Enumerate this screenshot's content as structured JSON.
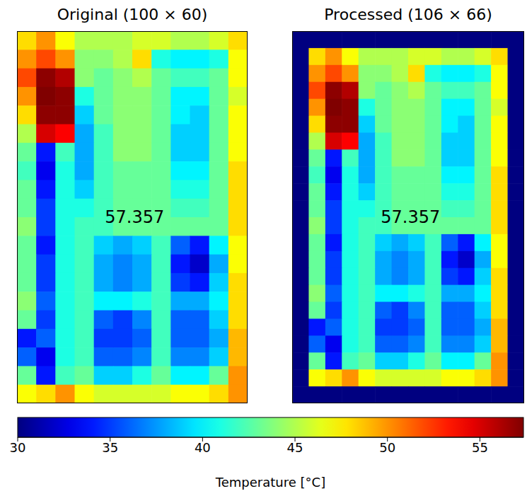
{
  "chart_data": [
    {
      "type": "heatmap",
      "title": "Original (100 × 60)",
      "annotation": "57.357",
      "tick_labels": false,
      "cells": [
        [
          48,
          50,
          47,
          45,
          45,
          45,
          46,
          46,
          45,
          45,
          46,
          48
        ],
        [
          50,
          52,
          50,
          44,
          44,
          45,
          48,
          41,
          40,
          40,
          41,
          47
        ],
        [
          52,
          57,
          56,
          44,
          43,
          44,
          45,
          43,
          42,
          42,
          43,
          47
        ],
        [
          50,
          57.357,
          57,
          41,
          43,
          44,
          44,
          43,
          40,
          40,
          43,
          46
        ],
        [
          48,
          57,
          57,
          39,
          43,
          44,
          44,
          43,
          40,
          39,
          43,
          47
        ],
        [
          45,
          55,
          54,
          38,
          42,
          44,
          44,
          43,
          39,
          39,
          43,
          47
        ],
        [
          43,
          34,
          42,
          38,
          42,
          44,
          44,
          43,
          39,
          39,
          43,
          47
        ],
        [
          42,
          33,
          41,
          38,
          42,
          43,
          43,
          43,
          40,
          40,
          43,
          48
        ],
        [
          43,
          34,
          41,
          39,
          42,
          43,
          43,
          43,
          41,
          41,
          43,
          48
        ],
        [
          43,
          35,
          41,
          41,
          42,
          43,
          43,
          43,
          42,
          42,
          43,
          48
        ],
        [
          44,
          35,
          41,
          42,
          42,
          43,
          43,
          43,
          43,
          43,
          43,
          48
        ],
        [
          43,
          34,
          41,
          42,
          39,
          38,
          39,
          42,
          36,
          34,
          40,
          47
        ],
        [
          43,
          35,
          41,
          42,
          38,
          37,
          38,
          42,
          34,
          32,
          38,
          47
        ],
        [
          43,
          35,
          41,
          42,
          38,
          37,
          38,
          42,
          35,
          34,
          39,
          48
        ],
        [
          44,
          36,
          41,
          42,
          40,
          40,
          41,
          42,
          38,
          38,
          40,
          48
        ],
        [
          43,
          35,
          41,
          42,
          36,
          35,
          37,
          42,
          36,
          36,
          39,
          48
        ],
        [
          34,
          36,
          41,
          42,
          35,
          35,
          36,
          42,
          36,
          36,
          38,
          49
        ],
        [
          36,
          33,
          41,
          42,
          36,
          36,
          37,
          42,
          37,
          37,
          39,
          49
        ],
        [
          43,
          34,
          42,
          43,
          39,
          39,
          41,
          43,
          40,
          40,
          43,
          50
        ],
        [
          47,
          48,
          50,
          47,
          46,
          46,
          46,
          46,
          47,
          47,
          48,
          50
        ]
      ]
    },
    {
      "type": "heatmap",
      "title": "Processed (106 × 66)",
      "annotation": "57.357",
      "tick_labels": false,
      "cells": [
        [
          30,
          30,
          30,
          30,
          30,
          30,
          30,
          30,
          30,
          30,
          30,
          30,
          30,
          30
        ],
        [
          30,
          48,
          50,
          47,
          45,
          45,
          45,
          46,
          46,
          45,
          45,
          46,
          48,
          30
        ],
        [
          30,
          50,
          52,
          50,
          44,
          44,
          45,
          48,
          41,
          40,
          40,
          41,
          47,
          30
        ],
        [
          30,
          52,
          57,
          56,
          44,
          43,
          44,
          45,
          43,
          42,
          42,
          43,
          47,
          30
        ],
        [
          30,
          50,
          57.357,
          57,
          41,
          43,
          44,
          44,
          43,
          40,
          40,
          43,
          46,
          30
        ],
        [
          30,
          48,
          57,
          57,
          39,
          43,
          44,
          44,
          43,
          40,
          39,
          43,
          47,
          30
        ],
        [
          30,
          45,
          55,
          54,
          38,
          42,
          44,
          44,
          43,
          39,
          39,
          43,
          47,
          30
        ],
        [
          30,
          43,
          34,
          42,
          38,
          42,
          44,
          44,
          43,
          39,
          39,
          43,
          47,
          30
        ],
        [
          30,
          42,
          33,
          41,
          38,
          42,
          43,
          43,
          43,
          40,
          40,
          43,
          48,
          30
        ],
        [
          30,
          43,
          34,
          41,
          39,
          42,
          43,
          43,
          43,
          41,
          41,
          43,
          48,
          30
        ],
        [
          30,
          43,
          35,
          41,
          41,
          42,
          43,
          43,
          43,
          42,
          42,
          43,
          48,
          30
        ],
        [
          30,
          44,
          35,
          41,
          42,
          42,
          43,
          43,
          43,
          43,
          43,
          43,
          48,
          30
        ],
        [
          30,
          43,
          34,
          41,
          42,
          39,
          38,
          39,
          42,
          36,
          34,
          40,
          47,
          30
        ],
        [
          30,
          43,
          35,
          41,
          42,
          38,
          37,
          38,
          42,
          34,
          32,
          38,
          47,
          30
        ],
        [
          30,
          43,
          35,
          41,
          42,
          38,
          37,
          38,
          42,
          35,
          34,
          39,
          48,
          30
        ],
        [
          30,
          44,
          36,
          41,
          42,
          40,
          40,
          41,
          42,
          38,
          38,
          40,
          48,
          30
        ],
        [
          30,
          43,
          35,
          41,
          42,
          36,
          35,
          37,
          42,
          36,
          36,
          39,
          48,
          30
        ],
        [
          30,
          34,
          36,
          41,
          42,
          35,
          35,
          36,
          42,
          36,
          36,
          38,
          49,
          30
        ],
        [
          30,
          36,
          33,
          41,
          42,
          36,
          36,
          37,
          42,
          37,
          37,
          39,
          49,
          30
        ],
        [
          30,
          43,
          34,
          42,
          43,
          39,
          39,
          41,
          43,
          40,
          40,
          43,
          50,
          30
        ],
        [
          30,
          47,
          48,
          50,
          47,
          46,
          46,
          46,
          46,
          47,
          47,
          48,
          50,
          30
        ],
        [
          30,
          30,
          30,
          30,
          30,
          30,
          30,
          30,
          30,
          30,
          30,
          30,
          30,
          30
        ]
      ]
    }
  ],
  "colorbar": {
    "range": [
      30,
      57.357
    ],
    "ticks": [
      30,
      35,
      40,
      45,
      50,
      55
    ],
    "label": "Temperature [°C]"
  }
}
